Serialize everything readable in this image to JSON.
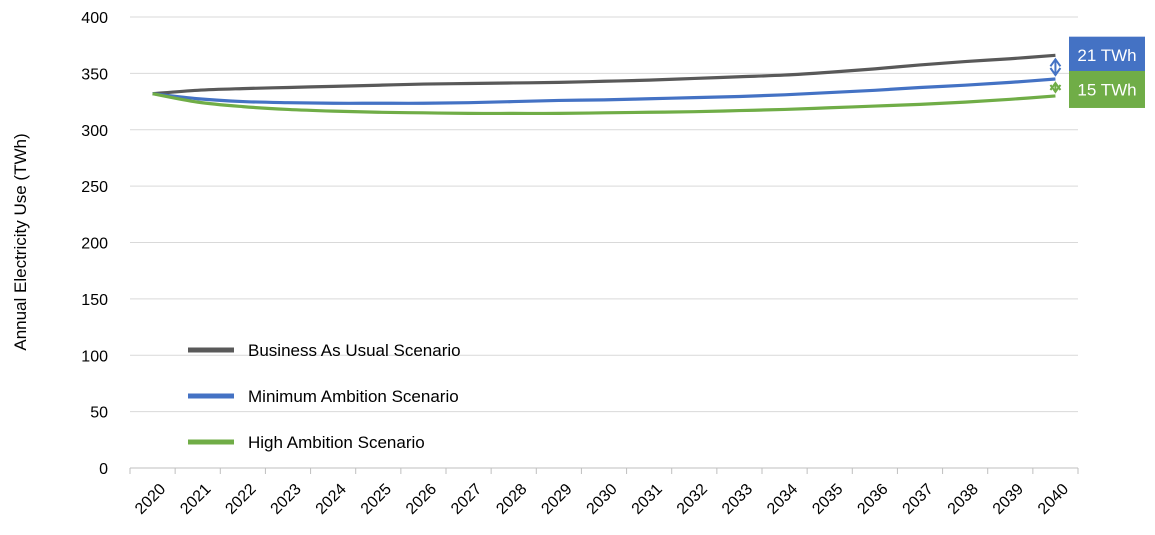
{
  "chart_data": {
    "type": "line",
    "title": "",
    "xlabel": "",
    "ylabel": "Annual Electricity Use (TWh)",
    "x": [
      "2020",
      "2021",
      "2022",
      "2023",
      "2024",
      "2025",
      "2026",
      "2027",
      "2028",
      "2029",
      "2030",
      "2031",
      "2032",
      "2033",
      "2034",
      "2035",
      "2036",
      "2037",
      "2038",
      "2039",
      "2040"
    ],
    "ylim": [
      0,
      400
    ],
    "yticks": [
      "0",
      "50",
      "100",
      "150",
      "200",
      "250",
      "300",
      "350",
      "400"
    ],
    "grid": true,
    "legend_position": "bottom-left",
    "series": [
      {
        "name": "Business As Usual Scenario",
        "color": "#595959",
        "values": [
          332,
          335,
          336.5,
          337.5,
          338.5,
          339.5,
          340.5,
          341,
          341.5,
          342,
          343,
          344,
          345.5,
          347,
          348.5,
          351,
          354,
          357.5,
          360.5,
          363,
          366
        ]
      },
      {
        "name": "Minimum Ambition Scenario",
        "color": "#4472C4",
        "values": [
          332,
          327.5,
          325,
          324,
          323.5,
          323.5,
          323.5,
          324,
          325,
          326,
          326.5,
          327.5,
          328.5,
          329.5,
          331,
          333,
          335,
          337.5,
          339.5,
          342,
          345
        ]
      },
      {
        "name": "High Ambition Scenario",
        "color": "#70AD47",
        "values": [
          332,
          324.5,
          320.5,
          318,
          316.5,
          315.5,
          315,
          314.5,
          314.5,
          314.5,
          315,
          315.5,
          316,
          317,
          318,
          319.5,
          321,
          322.5,
          324.5,
          327,
          330
        ]
      }
    ],
    "annotations": [
      {
        "label": "21 TWh",
        "color": "#4472C4",
        "from_series": "Business As Usual Scenario",
        "to_series": "Minimum Ambition Scenario",
        "x": "2040"
      },
      {
        "label": "15 TWh",
        "color": "#70AD47",
        "from_series": "Minimum Ambition Scenario",
        "to_series": "High Ambition Scenario",
        "x": "2040"
      }
    ]
  }
}
